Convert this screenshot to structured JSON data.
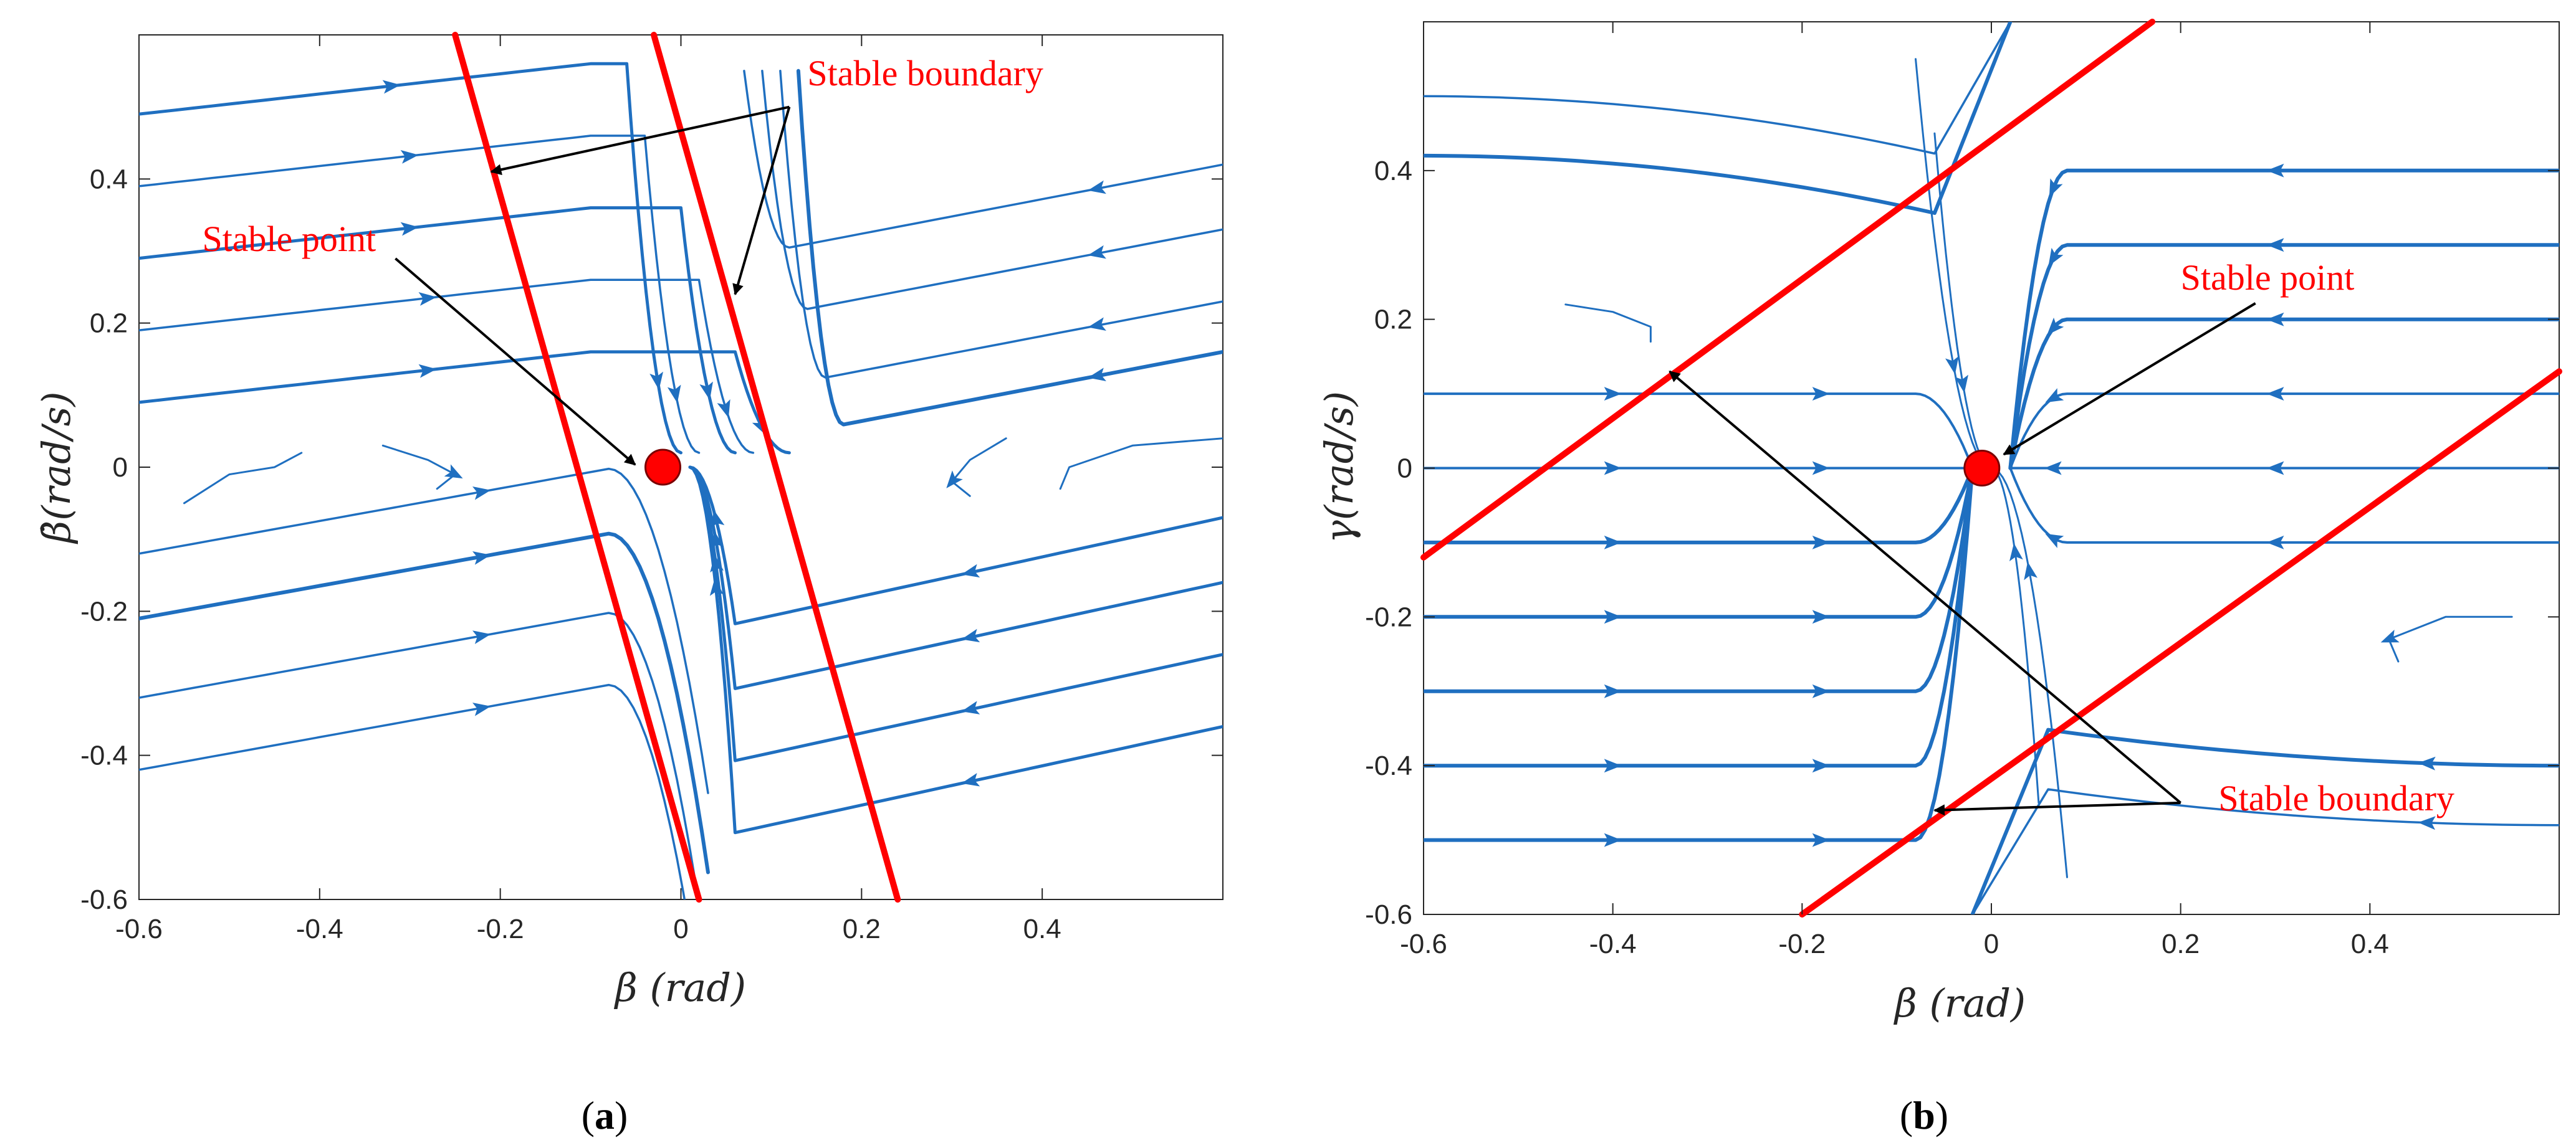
{
  "chart_data": [
    {
      "type": "streamplot",
      "panel_tag": "(a)",
      "panel_letter": "a",
      "xlabel": "β (rad)",
      "ylabel": "β̇(rad/s)",
      "xlim": [
        -0.6,
        0.6
      ],
      "ylim": [
        -0.6,
        0.6
      ],
      "xticks": [
        -0.6,
        -0.4,
        -0.2,
        0,
        0.2,
        0.4
      ],
      "xtick_labels": [
        "-0.6",
        "-0.4",
        "-0.2",
        "0",
        "0.2",
        "0.4"
      ],
      "yticks": [
        -0.6,
        -0.4,
        -0.2,
        0,
        0.2,
        0.4
      ],
      "ytick_labels": [
        "-0.6",
        "-0.4",
        "-0.2",
        "0",
        "0.2",
        "0.4"
      ],
      "stable_point": {
        "x": -0.02,
        "y": 0.0,
        "label": "Stable point",
        "label_at": [
          -0.53,
          0.3
        ],
        "arrow_to": [
          -0.03,
          0.0
        ]
      },
      "stable_boundaries": [
        {
          "x1": -0.25,
          "y1": 0.6,
          "x2": 0.02,
          "y2": -0.6
        },
        {
          "x1": -0.03,
          "y1": 0.6,
          "x2": 0.24,
          "y2": -0.6
        }
      ],
      "boundary_annotation": {
        "label": "Stable boundary",
        "label_at": [
          0.14,
          0.53
        ],
        "arrow_from": [
          0.12,
          0.5
        ],
        "arrow_to": [
          [
            -0.21,
            0.41
          ],
          [
            0.06,
            0.24
          ]
        ]
      },
      "colors": {
        "stream": "#1f6fc0",
        "boundary": "#ff0000",
        "point_fill": "#ff0000",
        "annotation": "#ff0000",
        "arrow": "#000000"
      }
    },
    {
      "type": "streamplot",
      "panel_tag": "(b)",
      "panel_letter": "b",
      "xlabel": "β (rad)",
      "ylabel": "γ(rad/s)",
      "xlim": [
        -0.6,
        0.6
      ],
      "ylim": [
        -0.6,
        0.6
      ],
      "xticks": [
        -0.6,
        -0.4,
        -0.2,
        0,
        0.2,
        0.4
      ],
      "xtick_labels": [
        "-0.6",
        "-0.4",
        "-0.2",
        "0",
        "0.2",
        "0.4"
      ],
      "yticks": [
        -0.6,
        -0.4,
        -0.2,
        0,
        0.2,
        0.4
      ],
      "ytick_labels": [
        "-0.6",
        "-0.4",
        "-0.2",
        "0",
        "0.2",
        "0.4"
      ],
      "stable_point": {
        "x": -0.01,
        "y": 0.0,
        "label": "Stable point",
        "label_at": [
          0.2,
          0.24
        ],
        "arrow_to": [
          0.0,
          0.0
        ]
      },
      "stable_boundaries": [
        {
          "x1": -0.6,
          "y1": -0.12,
          "x2": 0.17,
          "y2": 0.6
        },
        {
          "x1": -0.2,
          "y1": -0.6,
          "x2": 0.6,
          "y2": 0.13
        }
      ],
      "boundary_annotation": {
        "label": "Stable boundary",
        "label_at": [
          0.24,
          -0.46
        ],
        "arrow_from": [
          0.2,
          -0.45
        ],
        "arrow_to": [
          [
            -0.34,
            0.13
          ],
          [
            -0.06,
            -0.46
          ]
        ]
      },
      "colors": {
        "stream": "#1f6fc0",
        "boundary": "#ff0000",
        "point_fill": "#ff0000",
        "annotation": "#ff0000",
        "arrow": "#000000"
      }
    }
  ]
}
